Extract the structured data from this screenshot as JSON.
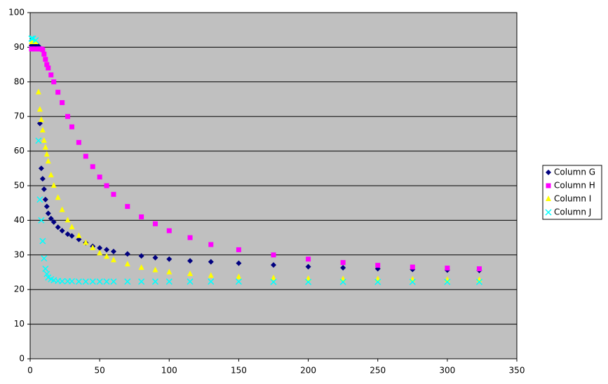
{
  "chart_data": {
    "type": "scatter",
    "x": [
      1,
      2,
      4,
      6,
      7,
      8,
      9,
      10,
      11,
      12,
      13,
      15,
      17,
      20,
      23,
      27,
      30,
      35,
      40,
      45,
      50,
      55,
      60,
      70,
      80,
      90,
      100,
      115,
      130,
      150,
      175,
      200,
      225,
      250,
      275,
      300,
      323
    ],
    "series": [
      {
        "name": "Column G",
        "color": "#000080",
        "marker": "diamond",
        "values": [
          90.5,
          90.5,
          90.5,
          90.3,
          68,
          55,
          52,
          49,
          46,
          44,
          42,
          40.5,
          39.5,
          38,
          37,
          36,
          35.5,
          34.5,
          33.5,
          32.5,
          32,
          31.5,
          31,
          30.3,
          29.7,
          29.2,
          28.8,
          28.3,
          28,
          27.6,
          27.1,
          26.6,
          26.3,
          26,
          25.8,
          25.6,
          25.5
        ]
      },
      {
        "name": "Column H",
        "color": "#ff00ff",
        "marker": "square",
        "values": [
          89.5,
          89.5,
          89.5,
          89.5,
          89.5,
          89.5,
          89.3,
          88,
          86.5,
          85,
          84,
          82,
          80,
          77,
          74,
          70,
          67,
          62.5,
          58.5,
          55.5,
          52.5,
          50,
          47.5,
          44,
          41,
          39,
          37,
          35,
          33,
          31.5,
          30,
          28.8,
          27.8,
          27,
          26.5,
          26.2,
          26
        ]
      },
      {
        "name": "Column I",
        "color": "#ffff00",
        "marker": "triangle",
        "values": [
          91.5,
          91.5,
          91.5,
          77,
          72,
          69,
          66,
          63,
          61,
          59,
          57,
          53,
          50,
          46.5,
          43,
          40,
          38,
          35.5,
          33.5,
          32,
          30.5,
          29.5,
          28.5,
          27.3,
          26.3,
          25.6,
          25,
          24.5,
          24,
          23.6,
          23.3,
          23.1,
          23,
          23,
          22.9,
          22.8,
          22.8
        ]
      },
      {
        "name": "Column J",
        "color": "#00ffff",
        "marker": "x",
        "values": [
          92.5,
          92.5,
          92,
          63,
          46,
          40,
          34,
          29,
          26,
          24.5,
          23.5,
          23,
          22.7,
          22.5,
          22.4,
          22.4,
          22.4,
          22.3,
          22.3,
          22.3,
          22.3,
          22.3,
          22.3,
          22.3,
          22.3,
          22.3,
          22.3,
          22.3,
          22.3,
          22.3,
          22.2,
          22.2,
          22.2,
          22.2,
          22.2,
          22.2,
          22.2
        ]
      }
    ],
    "xlim": [
      0,
      350
    ],
    "xticks": [
      0,
      50,
      100,
      150,
      200,
      250,
      300,
      350
    ],
    "ylim": [
      0,
      100
    ],
    "yticks": [
      0,
      10,
      20,
      30,
      40,
      50,
      60,
      70,
      80,
      90,
      100
    ],
    "grid": true,
    "legend": "right",
    "plot_background": "#c0c0c0"
  }
}
